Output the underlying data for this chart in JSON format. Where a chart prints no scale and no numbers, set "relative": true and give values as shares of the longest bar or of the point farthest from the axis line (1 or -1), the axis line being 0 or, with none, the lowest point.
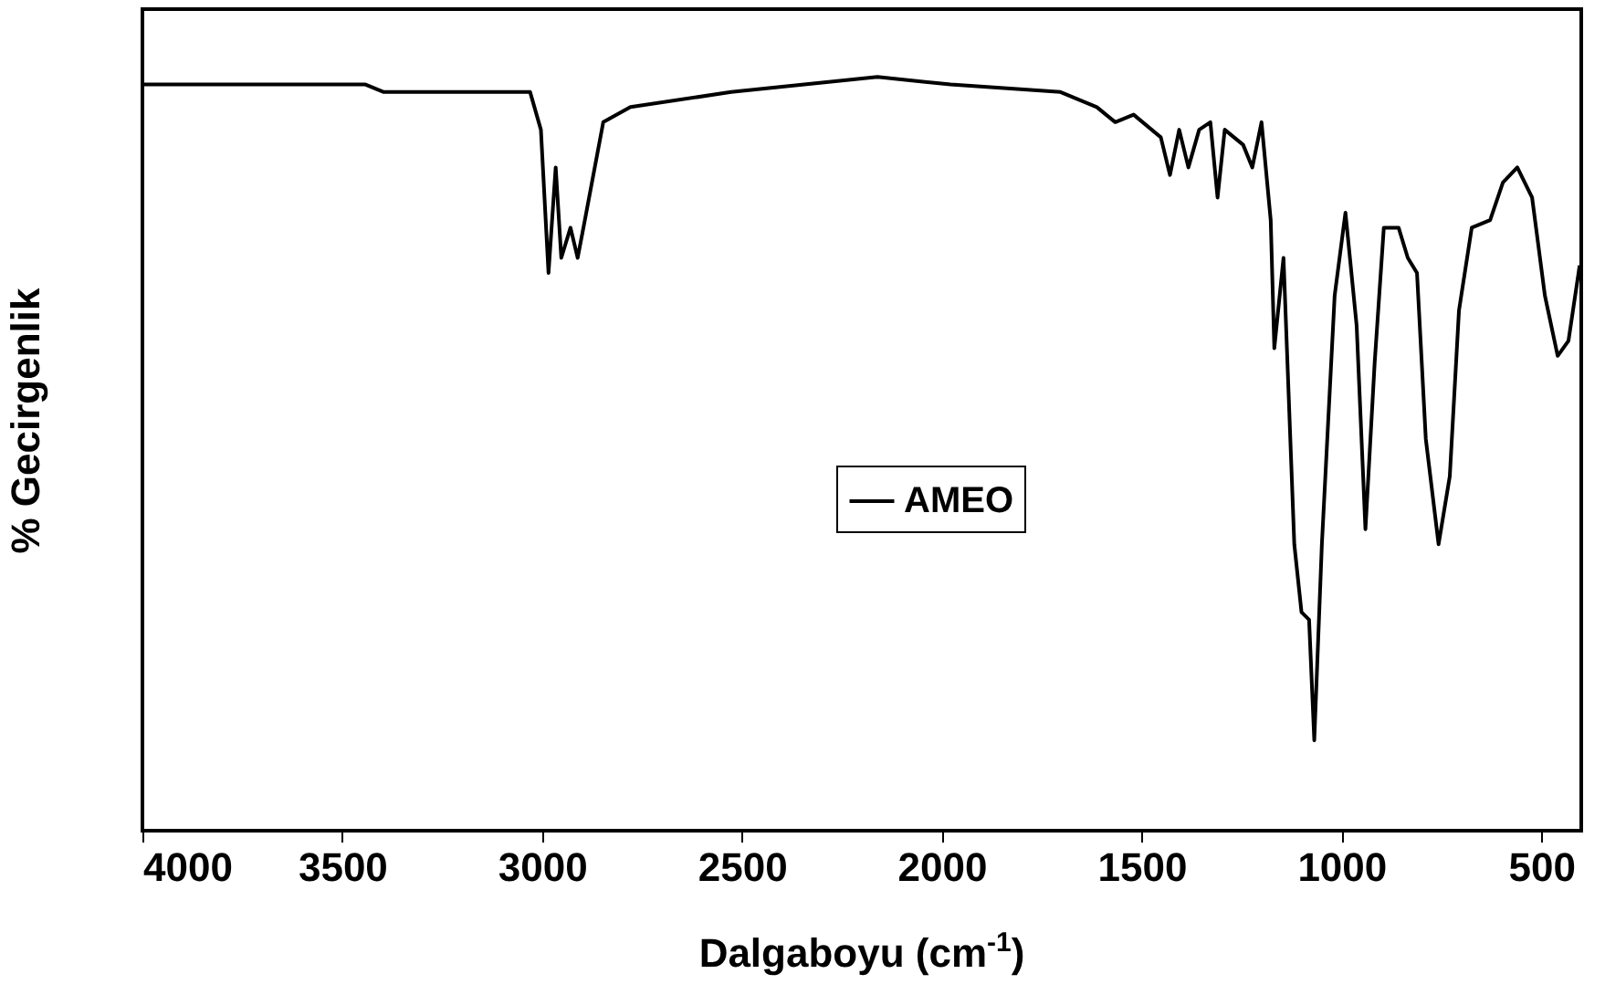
{
  "chart_data": {
    "type": "line",
    "xlabel": "Dalgaboyu (cm$^{-1}$)",
    "ylabel": "% Gecirgenlik",
    "relative": true,
    "xlim": [
      4000,
      400
    ],
    "xticks": [
      4000,
      3500,
      3000,
      2500,
      2000,
      1500,
      1000,
      500
    ],
    "tick_labels": "x",
    "legend": "center",
    "grid": false,
    "line_style": "solid",
    "marker": "none",
    "x": [
      4000,
      3442,
      3396,
      3259,
      3030,
      3003,
      2984,
      2966,
      2952,
      2929,
      2911,
      2893,
      2847,
      2779,
      2527,
      2161,
      1978,
      1703,
      1612,
      1566,
      1520,
      1452,
      1429,
      1406,
      1383,
      1356,
      1328,
      1310,
      1292,
      1246,
      1223,
      1200,
      1177,
      1168,
      1145,
      1118,
      1100,
      1081,
      1068,
      1049,
      1017,
      990,
      962,
      940,
      917,
      894,
      857,
      834,
      811,
      789,
      757,
      729,
      706,
      674,
      628,
      596,
      560,
      523,
      491,
      459,
      432,
      404
    ],
    "series": [
      {
        "name": "AMEO",
        "color": "#000000",
        "values": [
          0.99,
          0.99,
          0.98,
          0.98,
          0.98,
          0.93,
          0.74,
          0.88,
          0.76,
          0.8,
          0.76,
          0.81,
          0.94,
          0.96,
          0.98,
          1.0,
          0.99,
          0.98,
          0.96,
          0.94,
          0.95,
          0.92,
          0.87,
          0.93,
          0.88,
          0.93,
          0.94,
          0.84,
          0.93,
          0.91,
          0.88,
          0.94,
          0.81,
          0.64,
          0.76,
          0.38,
          0.29,
          0.28,
          0.12,
          0.38,
          0.71,
          0.82,
          0.67,
          0.4,
          0.62,
          0.8,
          0.8,
          0.76,
          0.74,
          0.52,
          0.38,
          0.47,
          0.69,
          0.8,
          0.81,
          0.86,
          0.88,
          0.84,
          0.71,
          0.63,
          0.65,
          0.75
        ]
      }
    ]
  }
}
